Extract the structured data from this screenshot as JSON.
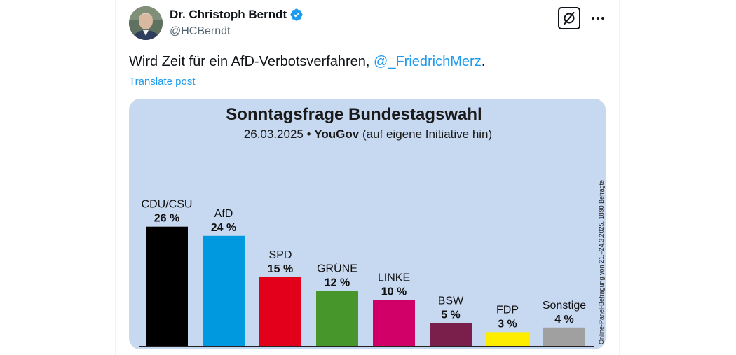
{
  "post": {
    "display_name": "Dr. Christoph Berndt",
    "handle": "@HCBerndt",
    "text_before": "Wird Zeit für ein AfD-Verbotsverfahren, ",
    "mention": "@_FriedrichMerz",
    "text_after": ".",
    "translate_label": "Translate post",
    "icons": {
      "verified": "verified-badge-icon",
      "grok": "grok-icon",
      "more": "more-dots-icon"
    },
    "colors": {
      "accent": "#1d9bf0",
      "text": "#0f1419",
      "secondary": "#536471"
    }
  },
  "chart_data": {
    "type": "bar",
    "title": "Sonntagsfrage Bundestagswahl",
    "subtitle_date": "26.03.2025 •",
    "subtitle_source": "YouGov",
    "subtitle_note": "(auf eigene Initiative hin)",
    "side_note": "Online-Panel-Befragung von 21.–24.3.2025, 1890 Befragte",
    "categories": [
      "CDU/CSU",
      "AfD",
      "SPD",
      "GRÜNE",
      "LINKE",
      "BSW",
      "FDP",
      "Sonstige"
    ],
    "values": [
      26,
      24,
      15,
      12,
      10,
      5,
      3,
      4
    ],
    "value_labels": [
      "26 %",
      "24 %",
      "15 %",
      "12 %",
      "10 %",
      "5 %",
      "3 %",
      "4 %"
    ],
    "colors": [
      "#000000",
      "#0099e0",
      "#e3001b",
      "#46962b",
      "#d10069",
      "#7a1f4b",
      "#ffed00",
      "#a0a0a0"
    ],
    "ylim": [
      0,
      30
    ],
    "background": "#c7d8f1"
  }
}
